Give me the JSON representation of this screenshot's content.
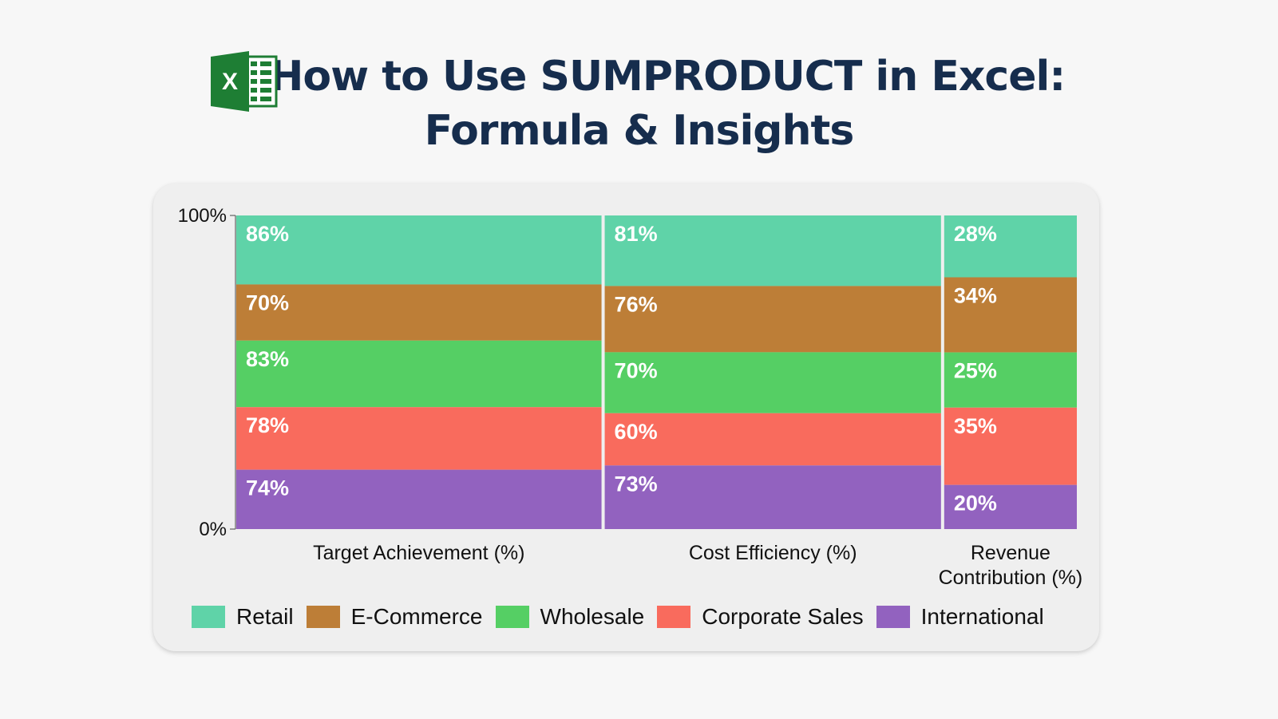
{
  "header": {
    "title_line1": "How to Use SUMPRODUCT in Excel:",
    "title_line2": "Formula & Insights",
    "logo_icon": "excel-logo-icon",
    "logo_text": "X"
  },
  "chart_data": {
    "type": "marimekko",
    "title": "",
    "categories": [
      "Target Achievement (%)",
      "Cost Efficiency (%)",
      "Revenue Contribution (%)"
    ],
    "category_lines": [
      [
        "Target Achievement (%)"
      ],
      [
        "Cost Efficiency (%)"
      ],
      [
        "Revenue",
        "Contribution (%)"
      ]
    ],
    "series": [
      {
        "name": "Retail",
        "color": "#5fd3a8",
        "values": [
          86,
          81,
          28
        ]
      },
      {
        "name": "E-Commerce",
        "color": "#bd7e37",
        "values": [
          70,
          76,
          34
        ]
      },
      {
        "name": "Wholesale",
        "color": "#55cf64",
        "values": [
          83,
          70,
          25
        ]
      },
      {
        "name": "Corporate Sales",
        "color": "#f96b5d",
        "values": [
          78,
          60,
          35
        ]
      },
      {
        "name": "International",
        "color": "#9262bf",
        "values": [
          74,
          73,
          20
        ]
      }
    ],
    "y_ticks": [
      "0%",
      "100%"
    ],
    "ylim": [
      0,
      100
    ],
    "value_suffix": "%",
    "legend_position": "bottom",
    "grid": false
  }
}
